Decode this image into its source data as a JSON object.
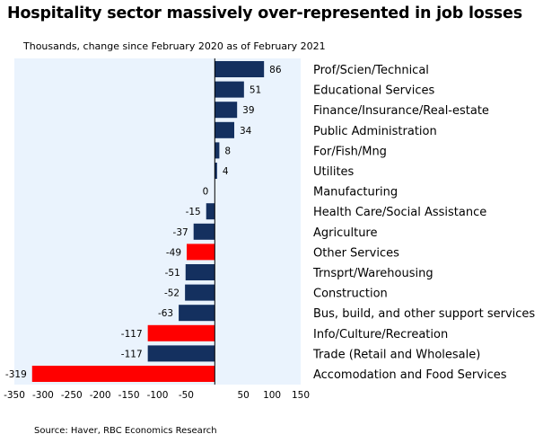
{
  "chart_data": {
    "type": "bar",
    "orientation": "horizontal",
    "title": "Hospitality sector massively over-represented in job losses",
    "subtitle": "Thousands, change since February 2020 as of February 2021",
    "source": "Source: Haver, RBC Economics Research",
    "categories": [
      "Prof/Scien/Technical",
      "Educational Services",
      "Finance/Insurance/Real-estate",
      "Public Administration",
      "For/Fish/Mng",
      "Utilites",
      "Manufacturing",
      "Health Care/Social Assistance",
      "Agriculture",
      "Other Services",
      "Trnsprt/Warehousing",
      "Construction",
      "Bus, build, and other support services",
      "Info/Culture/Recreation",
      "Trade (Retail and Wholesale)",
      "Accomodation and Food Services"
    ],
    "values": [
      86,
      51,
      39,
      34,
      8,
      4,
      0,
      -15,
      -37,
      -49,
      -51,
      -52,
      -63,
      -117,
      -117,
      -319
    ],
    "highlighted": [
      false,
      false,
      false,
      false,
      false,
      false,
      false,
      false,
      false,
      true,
      false,
      false,
      false,
      true,
      false,
      true
    ],
    "xlim": [
      -350,
      150
    ],
    "xticks": [
      -350,
      -300,
      -250,
      -200,
      -150,
      -100,
      -50,
      50,
      100,
      150
    ],
    "colors": {
      "default": "#14305f",
      "highlight": "#ff0000",
      "plot_background": "#eaf3fd"
    }
  }
}
